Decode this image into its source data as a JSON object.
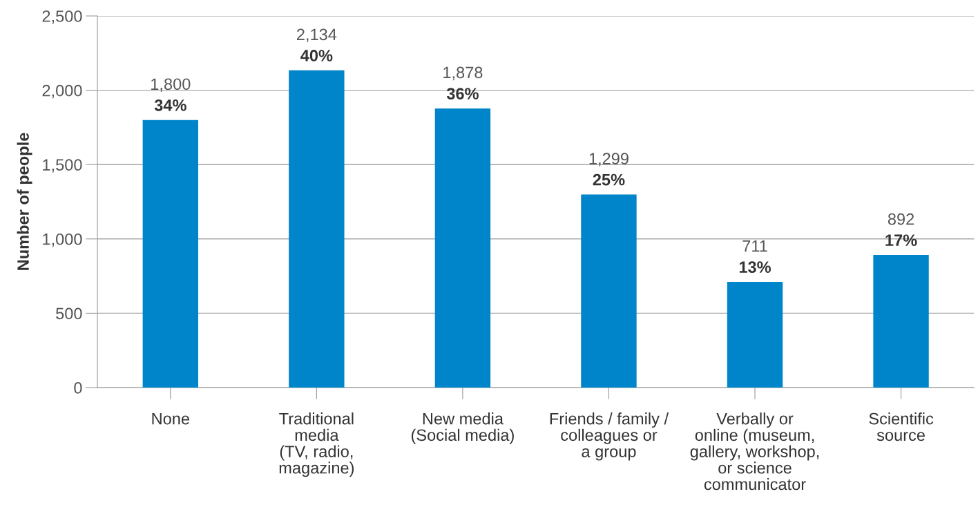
{
  "chart_data": {
    "type": "bar",
    "ylabel": "Number of people",
    "categories": [
      "None",
      "Traditional\nmedia\n(TV, radio,\nmagazine)",
      "New media\n(Social media)",
      "Friends / family /\ncolleagues or\na group",
      "Verbally or\nonline (museum,\ngallery, workshop,\nor science\ncommunicator",
      "Scientific\nsource"
    ],
    "values": [
      1800,
      2134,
      1878,
      1299,
      711,
      892
    ],
    "value_labels": [
      "1,800",
      "2,134",
      "1,878",
      "1,299",
      "711",
      "892"
    ],
    "color": "#0085ca",
    "ylim": [
      0,
      2500
    ],
    "yticks": [
      {
        "value": 0,
        "label": "0"
      },
      {
        "value": 500,
        "label": "500"
      },
      {
        "value": 1000,
        "label": "1,000"
      },
      {
        "value": 1500,
        "label": "1,500"
      },
      {
        "value": 2000,
        "label": "2,000"
      },
      {
        "value": 2500,
        "label": "2,500"
      }
    ],
    "grid": "y",
    "annotations": [
      {
        "text": "34%",
        "x": "None",
        "y": 1800
      },
      {
        "text": "40%",
        "x": "Traditional\nmedia\n(TV, radio,\nmagazine)",
        "y": 2134
      },
      {
        "text": "36%",
        "x": "New media\n(Social media)",
        "y": 1878
      },
      {
        "text": "25%",
        "x": "Friends / family /\ncolleagues or\na group",
        "y": 1299
      },
      {
        "text": "13%",
        "x": "Verbally or\nonline (museum,\ngallery, workshop,\nor science\ncommunicator",
        "y": 711
      },
      {
        "text": "17%",
        "x": "Scientific\nsource",
        "y": 892
      }
    ]
  }
}
